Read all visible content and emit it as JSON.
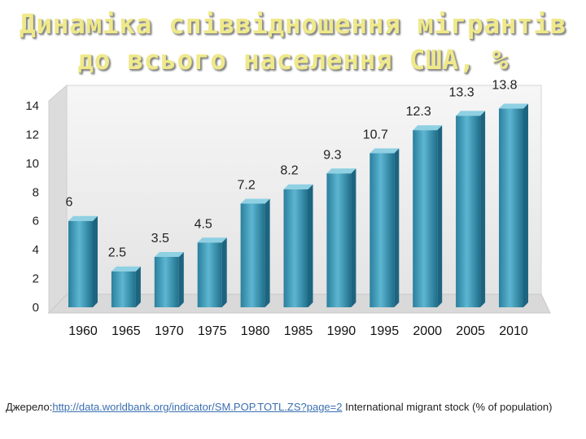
{
  "title": {
    "line1": "Динаміка співвідношення мігрантів",
    "line2": "до всього населення США, %"
  },
  "chart_data": {
    "type": "bar",
    "categories": [
      "1960",
      "1965",
      "1970",
      "1975",
      "1980",
      "1985",
      "1990",
      "1995",
      "2000",
      "2005",
      "2010"
    ],
    "values": [
      6,
      2.5,
      3.5,
      4.5,
      7.2,
      8.2,
      9.3,
      10.7,
      12.3,
      13.3,
      13.8
    ],
    "data_labels": [
      "6",
      "2.5",
      "3.5",
      "4.5",
      "7.2",
      "8.2",
      "9.3",
      "10.7",
      "12.3",
      "13.3",
      "13.8"
    ],
    "ylim": [
      0,
      14
    ],
    "yticks": [
      "0",
      "2",
      "4",
      "6",
      "8",
      "10",
      "12",
      "14"
    ],
    "bar_color": "#3b9cba",
    "wall_color": "#ececec",
    "grid": false,
    "legend": "none"
  },
  "source": {
    "prefix": "Джерело:",
    "link": "http://data.worldbank.org/indicator/SM.POP.TOTL.ZS?page=2",
    "suffix": " International migrant stock (% of population)"
  }
}
